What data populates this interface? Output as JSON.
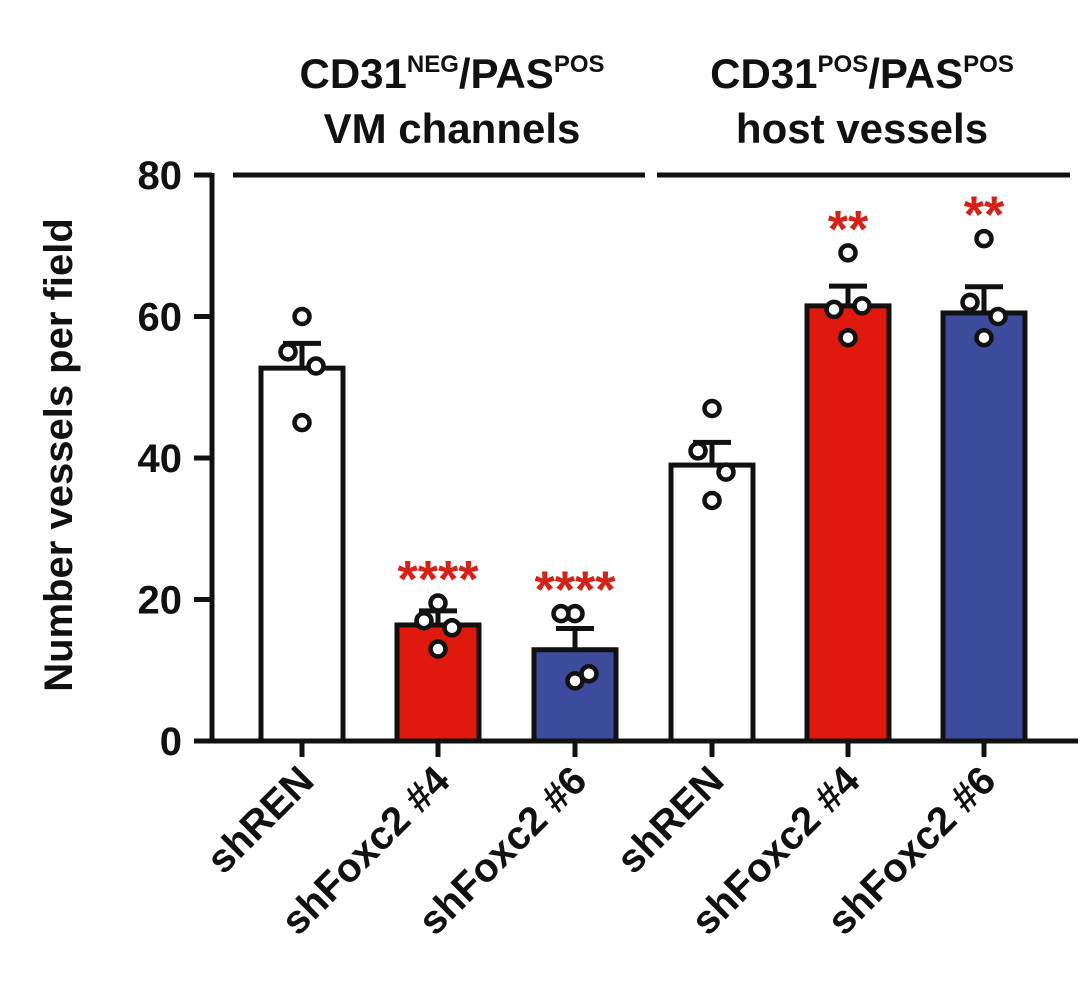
{
  "chart_data": {
    "type": "bar",
    "ylabel": "Number vessels per field",
    "ylim": [
      0,
      80
    ],
    "yticks": [
      0,
      20,
      40,
      60,
      80
    ],
    "grid": false,
    "groups": [
      {
        "title_main": "CD31",
        "title_sup1": "NEG",
        "title_mid": "/PAS",
        "title_sup2": "POS",
        "title_line2": "VM channels",
        "start": 0,
        "end": 2
      },
      {
        "title_main": "CD31",
        "title_sup1": "POS",
        "title_mid": "/PAS",
        "title_sup2": "POS",
        "title_line2": "host vessels",
        "start": 3,
        "end": 5
      }
    ],
    "categories": [
      "shREN",
      "shFoxc2 #4",
      "shFoxc2 #6",
      "shREN",
      "shFoxc2 #4",
      "shFoxc2 #6"
    ],
    "values": [
      52.7,
      16.4,
      12.9,
      39.0,
      61.5,
      60.5
    ],
    "errors": [
      3.5,
      2.0,
      3.0,
      3.2,
      2.8,
      3.7
    ],
    "colors": [
      "#ffffff",
      "#e0190f",
      "#3c4b9c",
      "#ffffff",
      "#e0190f",
      "#3c4b9c"
    ],
    "points": [
      [
        60,
        55,
        53,
        45
      ],
      [
        19.5,
        17,
        16,
        13
      ],
      [
        18,
        18,
        9.5,
        8.5
      ],
      [
        47,
        41,
        38,
        34
      ],
      [
        69,
        61,
        61.5,
        57
      ],
      [
        71,
        62,
        60,
        57
      ]
    ],
    "significance": [
      "",
      "****",
      "****",
      "",
      "**",
      "**"
    ]
  }
}
